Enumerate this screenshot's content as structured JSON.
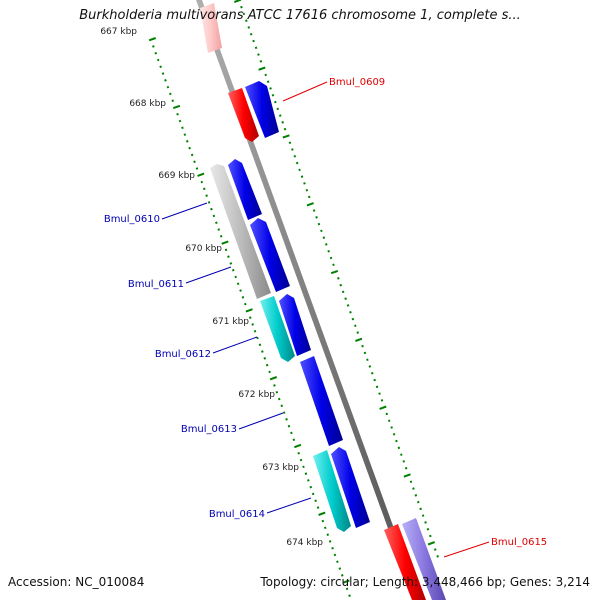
{
  "title": "Burkholderia multivorans ATCC 17616 chromosome 1, complete s...",
  "footer": {
    "accession": "Accession: NC_010084",
    "summary": "Topology: circular; Length: 3,448,466 bp; Genes: 3,214"
  },
  "colors": {
    "forward_gene": "#ff0000",
    "reverse_gene": "#0000e0",
    "cyan_gene": "#00c8c8",
    "grey_gene": "#b8b8b8",
    "light_purple_gene": "#8a78e0",
    "faded_red_gene": "#ffc8c8",
    "backbone": "#808080",
    "tick": "#008000",
    "label_red": "#e00000",
    "label_blue": "#0000b0"
  },
  "scale_labels": [
    "667 kbp",
    "668 kbp",
    "669 kbp",
    "670 kbp",
    "671 kbp",
    "672 kbp",
    "673 kbp",
    "674 kbp"
  ],
  "gene_labels": [
    {
      "text": "Bmul_0609",
      "side": "right",
      "color": "red"
    },
    {
      "text": "Bmul_0610",
      "side": "left",
      "color": "blue"
    },
    {
      "text": "Bmul_0611",
      "side": "left",
      "color": "blue"
    },
    {
      "text": "Bmul_0612",
      "side": "left",
      "color": "blue"
    },
    {
      "text": "Bmul_0613",
      "side": "left",
      "color": "blue"
    },
    {
      "text": "Bmul_0614",
      "side": "left",
      "color": "blue"
    },
    {
      "text": "Bmul_0615",
      "side": "right",
      "color": "red"
    }
  ]
}
